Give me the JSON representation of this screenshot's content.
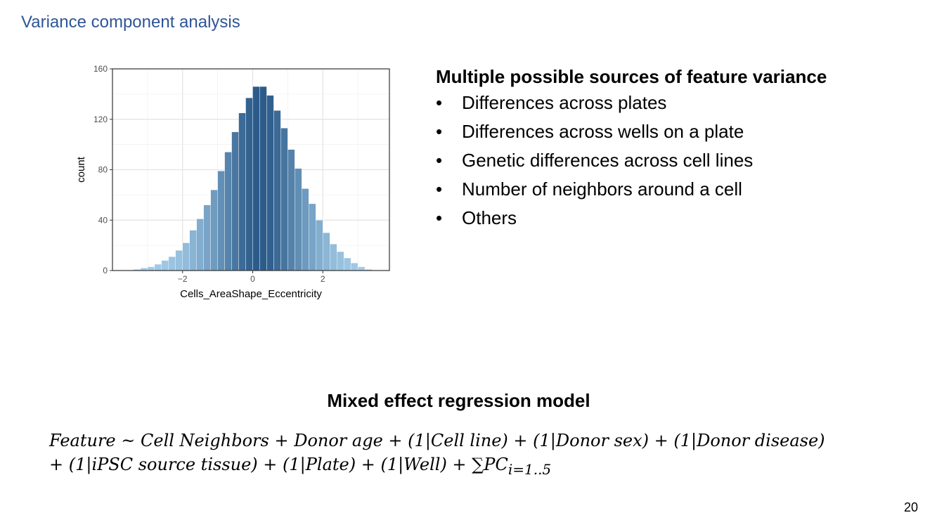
{
  "slide": {
    "title": "Variance component analysis",
    "page_number": "20"
  },
  "chart_data": {
    "type": "bar",
    "xlabel": "Cells_AreaShape_Eccentricity",
    "ylabel": "count",
    "xlim": [
      -4.0,
      3.9
    ],
    "ylim": [
      0,
      160
    ],
    "xticks": [
      -2,
      0,
      2
    ],
    "xtick_labels": [
      "−2",
      "0",
      "2"
    ],
    "yticks": [
      0,
      40,
      80,
      120,
      160
    ],
    "grid": true,
    "legend": "none",
    "bin_width": 0.2,
    "bin_centers": [
      -3.3,
      -3.1,
      -2.9,
      -2.7,
      -2.5,
      -2.3,
      -2.1,
      -1.9,
      -1.7,
      -1.5,
      -1.3,
      -1.1,
      -0.9,
      -0.7,
      -0.5,
      -0.3,
      -0.1,
      0.1,
      0.3,
      0.5,
      0.7,
      0.9,
      1.1,
      1.3,
      1.5,
      1.7,
      1.9,
      2.1,
      2.3,
      2.5,
      2.7,
      2.9,
      3.1,
      3.3
    ],
    "values": [
      1,
      2,
      3,
      5,
      8,
      11,
      16,
      22,
      32,
      41,
      52,
      64,
      79,
      94,
      110,
      125,
      137,
      146,
      146,
      139,
      127,
      113,
      96,
      81,
      65,
      53,
      40,
      30,
      21,
      15,
      10,
      6,
      3,
      1
    ],
    "colors": {
      "light": "#a4cde9",
      "dark": "#2b5b8a"
    }
  },
  "bullets": {
    "heading": "Multiple possible sources of feature variance",
    "items": [
      "Differences across plates",
      "Differences across wells on a plate",
      "Genetic differences across cell lines",
      "Number of neighbors around a cell",
      "Others"
    ],
    "marker": "•"
  },
  "model": {
    "heading": "Mixed effect regression model",
    "equation_line1": "Feature ~ Cell Neighbors + Donor age + (1|Cell line) + (1|Donor sex) + (1|Donor disease)",
    "equation_line2": "+ (1|iPSC source tissue) + (1|Plate) + (1|Well) + ∑PC",
    "equation_subscript": "i=1..5"
  }
}
